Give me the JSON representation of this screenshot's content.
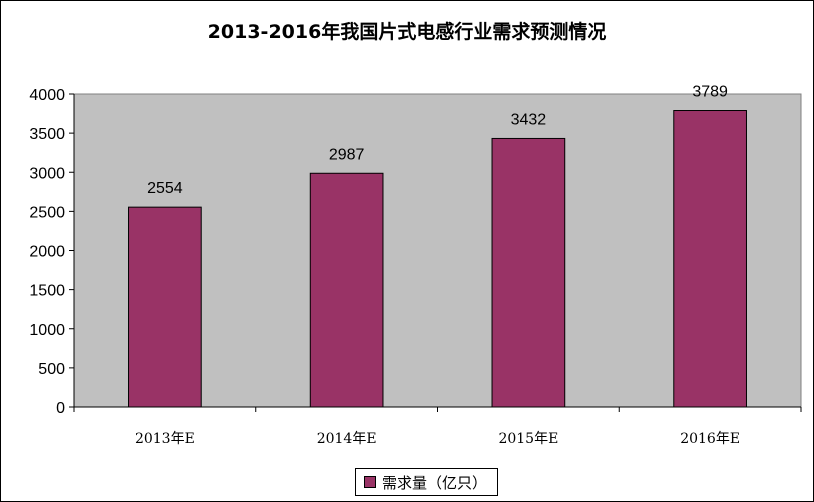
{
  "chart_data": {
    "type": "bar",
    "title": "2013-2016年我国片式电感行业需求预测情况",
    "categories": [
      "2013年E",
      "2014年E",
      "2015年E",
      "2016年E"
    ],
    "series": [
      {
        "name": "需求量（亿只）",
        "values": [
          2554,
          2987,
          3432,
          3789
        ],
        "color": "#993366"
      }
    ],
    "data_labels": [
      "2554",
      "2987",
      "3432",
      "3789"
    ],
    "ylim": [
      0,
      4000
    ],
    "yticks": [
      "0",
      "500",
      "1000",
      "1500",
      "2000",
      "2500",
      "3000",
      "3500",
      "4000"
    ],
    "grid": false,
    "legend_position": "bottom",
    "plot_background": "#C0C0C0"
  }
}
